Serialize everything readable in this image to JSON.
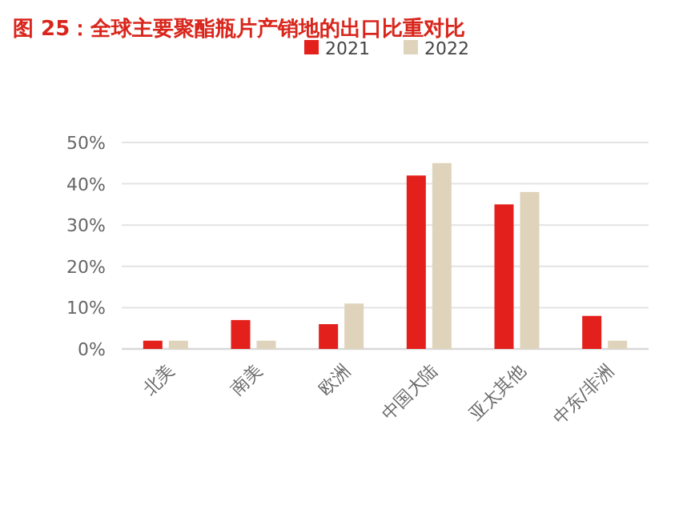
{
  "chart_data": {
    "type": "bar",
    "title": "图 25：全球主要聚酯瓶片产销地的出口比重对比",
    "categories": [
      "北美",
      "南美",
      "欧洲",
      "中国大陆",
      "亚太其他",
      "中东/非洲"
    ],
    "series": [
      {
        "name": "2021",
        "color": "#e3201b",
        "values": [
          2,
          7,
          6,
          42,
          35,
          8
        ]
      },
      {
        "name": "2022",
        "color": "#dfd3bb",
        "values": [
          2,
          2,
          11,
          45,
          38,
          2
        ]
      }
    ],
    "ylim": [
      0,
      50
    ],
    "yticks": [
      {
        "value": 0,
        "label": "0%"
      },
      {
        "value": 10,
        "label": "10%"
      },
      {
        "value": 20,
        "label": "20%"
      },
      {
        "value": 30,
        "label": "30%"
      },
      {
        "value": 40,
        "label": "40%"
      },
      {
        "value": 50,
        "label": "50%"
      }
    ],
    "grid": "y",
    "legend": "top"
  }
}
